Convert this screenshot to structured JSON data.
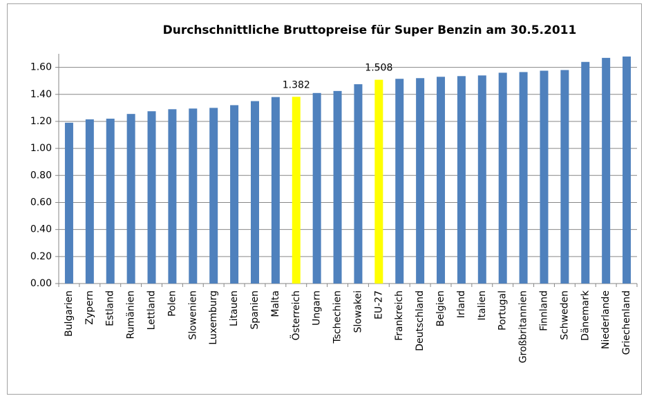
{
  "chart_data": {
    "type": "bar",
    "title": "Durchschnittliche Bruttopreise für Super Benzin am 30.5.2011",
    "categories": [
      "Bulgarien",
      "Zypern",
      "Estland",
      "Rumänien",
      "Lettland",
      "Polen",
      "Slowenien",
      "Luxemburg",
      "Litauen",
      "Spanien",
      "Malta",
      "Österreich",
      "Ungarn",
      "Tschechien",
      "Slowakei",
      "EU-27",
      "Frankreich",
      "Deutschland",
      "Belgien",
      "Irland",
      "Italien",
      "Portugal",
      "Großbritannien",
      "Finnland",
      "Schweden",
      "Dänemark",
      "Niederlande",
      "Griechenland"
    ],
    "values": [
      1.19,
      1.215,
      1.22,
      1.255,
      1.275,
      1.29,
      1.295,
      1.3,
      1.32,
      1.35,
      1.38,
      1.382,
      1.41,
      1.425,
      1.475,
      1.508,
      1.515,
      1.52,
      1.53,
      1.535,
      1.54,
      1.56,
      1.565,
      1.575,
      1.58,
      1.64,
      1.67,
      1.68
    ],
    "value_labels": [
      null,
      null,
      null,
      null,
      null,
      null,
      null,
      null,
      null,
      null,
      null,
      "1.382",
      null,
      null,
      null,
      "1.508",
      null,
      null,
      null,
      null,
      null,
      null,
      null,
      null,
      null,
      null,
      null,
      null
    ],
    "colors": [
      "#4f81bd",
      "#4f81bd",
      "#4f81bd",
      "#4f81bd",
      "#4f81bd",
      "#4f81bd",
      "#4f81bd",
      "#4f81bd",
      "#4f81bd",
      "#4f81bd",
      "#4f81bd",
      "#ffff00",
      "#4f81bd",
      "#4f81bd",
      "#4f81bd",
      "#ffff00",
      "#4f81bd",
      "#4f81bd",
      "#4f81bd",
      "#4f81bd",
      "#4f81bd",
      "#4f81bd",
      "#4f81bd",
      "#4f81bd",
      "#4f81bd",
      "#4f81bd",
      "#4f81bd",
      "#4f81bd"
    ],
    "ylim": [
      0,
      1.7
    ],
    "yticks": [
      {
        "value": 0,
        "label": "0.00"
      },
      {
        "value": 0.2,
        "label": "0.20"
      },
      {
        "value": 0.4,
        "label": "0.40"
      },
      {
        "value": 0.6,
        "label": "0.60"
      },
      {
        "value": 0.8,
        "label": "0.80"
      },
      {
        "value": 1.0,
        "label": "1.00"
      },
      {
        "value": 1.2,
        "label": "1.20"
      },
      {
        "value": 1.4,
        "label": "1.40"
      },
      {
        "value": 1.6,
        "label": "1.60"
      }
    ],
    "grid": true
  }
}
